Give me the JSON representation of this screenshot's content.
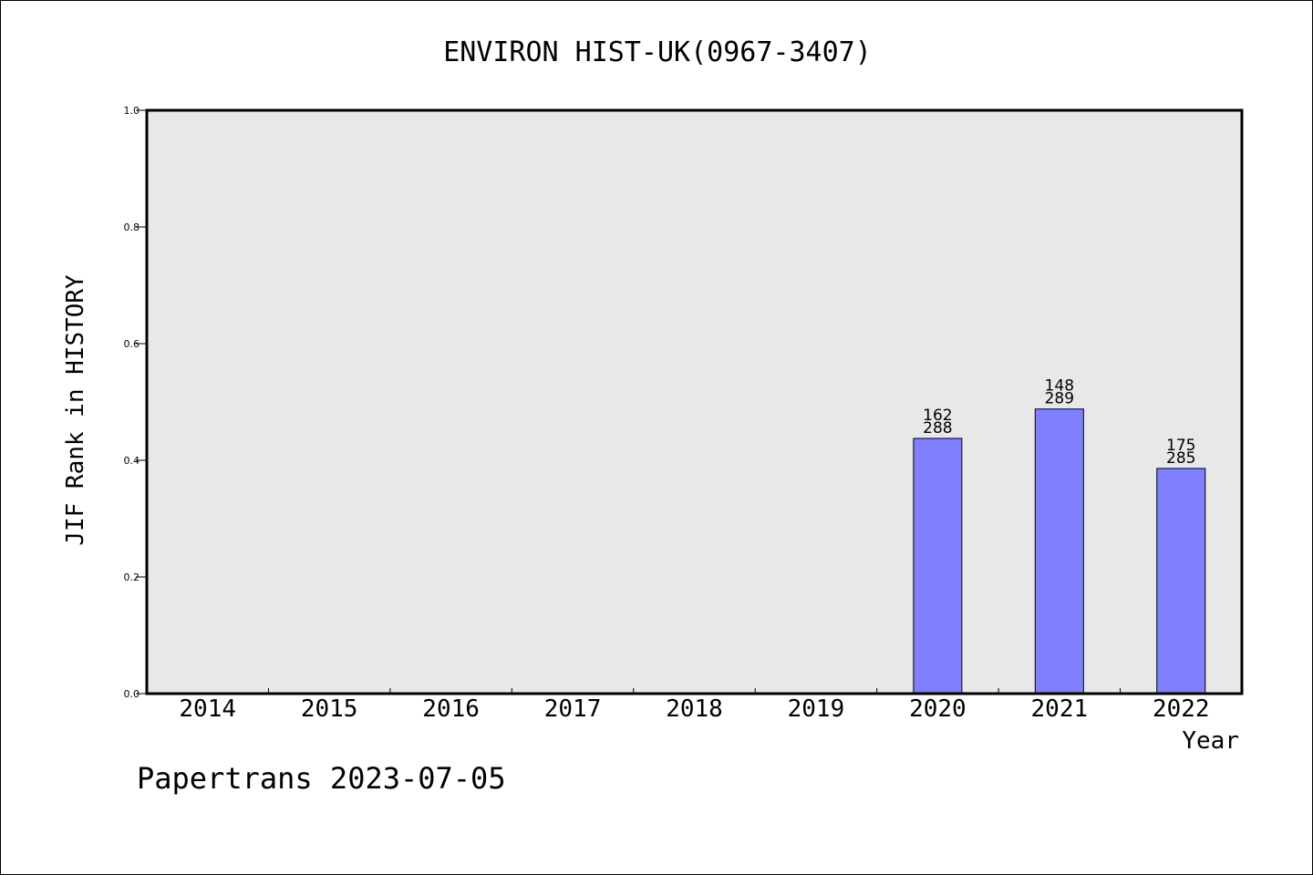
{
  "chart_data": {
    "type": "bar",
    "title": "ENVIRON HIST-UK(0967-3407)",
    "xlabel": "Year",
    "ylabel": "JIF Rank in HISTORY",
    "footer": "Papertrans 2023-07-05",
    "ylim": [
      0,
      1
    ],
    "yticks": [
      "0.0",
      "0.2",
      "0.4",
      "0.6",
      "0.8",
      "1.0"
    ],
    "categories": [
      "2014",
      "2015",
      "2016",
      "2017",
      "2018",
      "2019",
      "2020",
      "2021",
      "2022"
    ],
    "values": [
      null,
      null,
      null,
      null,
      null,
      null,
      0.4375,
      0.4879,
      0.386
    ],
    "labels": [
      null,
      null,
      null,
      null,
      null,
      null,
      {
        "rank": "162",
        "total": "288"
      },
      {
        "rank": "148",
        "total": "289"
      },
      {
        "rank": "175",
        "total": "285"
      }
    ],
    "colors": {
      "bar": "#8080ff",
      "plot_bg": "#e8e8e8",
      "axis": "#000000"
    },
    "grid": false,
    "legend": "none"
  }
}
